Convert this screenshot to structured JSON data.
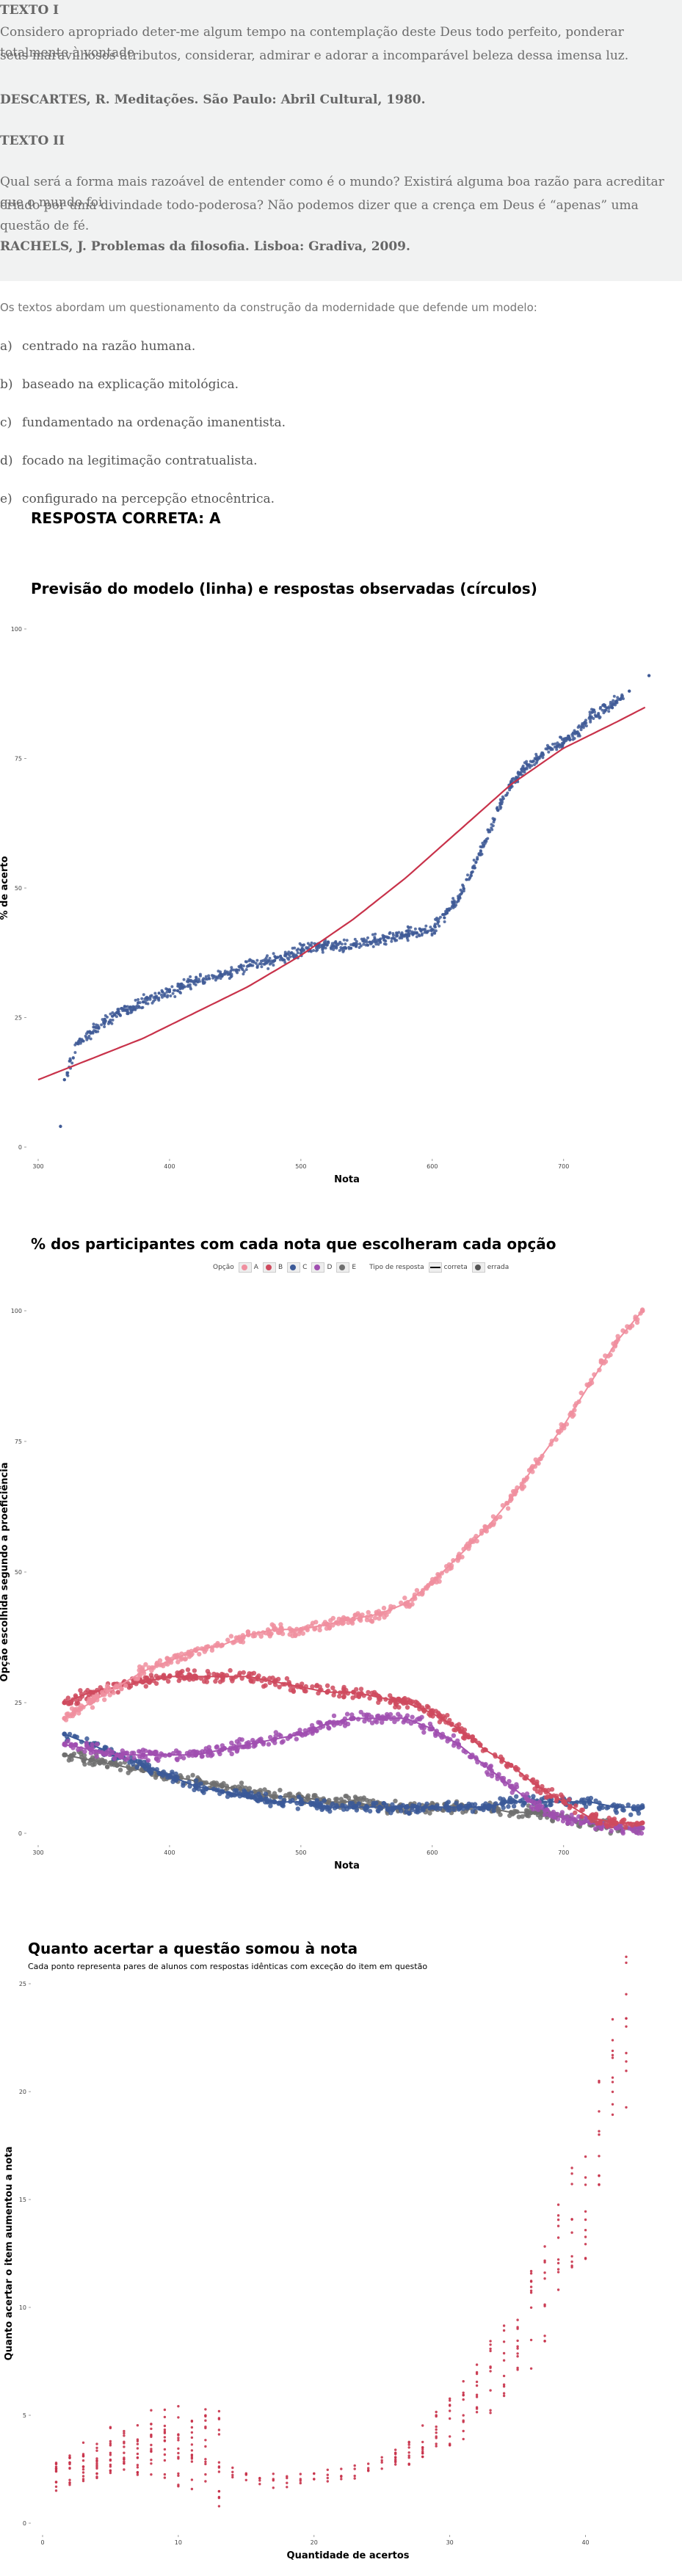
{
  "texts": {
    "t1_heading": "TEXTO I",
    "t1_line1": "Considero apropriado deter-me algum tempo na contemplação deste Deus todo perfeito, ponderar totalmente à vontade",
    "t1_line2": "seus maravilhosos atributos, considerar, admirar e adorar a incomparável beleza dessa imensa luz.",
    "t1_ref": "DESCARTES, R. Meditações. São Paulo: Abril Cultural, 1980.",
    "t2_heading": "TEXTO II",
    "t2_line1": "Qual será a forma mais razoável de entender como é o mundo? Existirá alguma boa razão para acreditar que o mundo foi",
    "t2_line2": "criado por uma divindade todo-poderosa? Não podemos dizer que a crença em Deus é “apenas” uma questão de fé.",
    "t2_ref": "RACHELS, J. Problemas da filosofia. Lisboa: Gradiva, 2009."
  },
  "question": {
    "intro": "Os textos abordam um questionamento da construção da modernidade que defende um modelo:",
    "options": [
      {
        "letter": "a)",
        "text": "centrado na razão humana."
      },
      {
        "letter": "b)",
        "text": "baseado na explicação mitológica."
      },
      {
        "letter": "c)",
        "text": "fundamentado na ordenação imanentista."
      },
      {
        "letter": "d)",
        "text": "focado na legitimação contratualista."
      },
      {
        "letter": "e)",
        "text": "configurado na percepção etnocêntrica."
      }
    ],
    "answer": "RESPOSTA CORRETA: A"
  },
  "colors": {
    "model_line": "#c8324a",
    "points_blue": "#3f5a96",
    "A": "#f08f9f",
    "B": "#cf4a5e",
    "C": "#3b5998",
    "D": "#a04fb0",
    "E": "#6f6f6f",
    "gain": "#c8324a"
  },
  "chart_data": [
    {
      "type": "scatter",
      "title": "Previsão do modelo (linha) e respostas observadas (círculos)",
      "xlabel": "Nota",
      "ylabel": "% de acerto",
      "x_ticks": [
        "300",
        "400",
        "500",
        "600",
        "700"
      ],
      "y_ticks": [
        "0",
        "25",
        "50",
        "75",
        "100"
      ],
      "xlim": [
        300,
        770
      ],
      "ylim": [
        0,
        100
      ],
      "grid": false,
      "series": [
        {
          "kind": "line",
          "x": [
            300,
            340,
            380,
            420,
            460,
            500,
            540,
            580,
            620,
            660,
            700,
            740,
            763
          ],
          "y": [
            13,
            17,
            21,
            26,
            31,
            37,
            44,
            52,
            61,
            70,
            77,
            82,
            85
          ]
        },
        {
          "kind": "points",
          "x": [
            317,
            320,
            330,
            340,
            350,
            360,
            370,
            380,
            400,
            420,
            440,
            460,
            480,
            500,
            520,
            540,
            560,
            580,
            600,
            610,
            620,
            630,
            640,
            650,
            660,
            670,
            680,
            690,
            700,
            710,
            720,
            740,
            750,
            765
          ],
          "y": [
            4,
            13,
            20,
            22,
            24,
            26,
            27,
            28,
            30,
            32,
            33,
            35,
            36,
            38,
            39,
            39,
            40,
            41,
            42,
            45,
            48,
            53,
            59,
            65,
            70,
            73,
            75,
            77,
            78,
            80,
            83,
            86,
            88,
            91
          ]
        }
      ]
    },
    {
      "type": "scatter",
      "title": "% dos participantes com cada nota que escolheram cada opção",
      "xlabel": "Nota",
      "ylabel": "Opção escolhida segundo a proeficiência",
      "x_ticks": [
        "300",
        "400",
        "500",
        "600",
        "700"
      ],
      "y_ticks": [
        "0",
        "25",
        "50",
        "75",
        "100"
      ],
      "xlim": [
        300,
        770
      ],
      "ylim": [
        0,
        100
      ],
      "legend": {
        "option_label": "Opção",
        "options": [
          "A",
          "B",
          "C",
          "D",
          "E"
        ],
        "type_label": "Tipo de resposta",
        "types": [
          "correta",
          "errada"
        ]
      },
      "series": [
        {
          "name": "A",
          "x": [
            320,
            340,
            360,
            380,
            400,
            420,
            440,
            460,
            480,
            500,
            520,
            540,
            560,
            580,
            600,
            620,
            640,
            660,
            680,
            700,
            720,
            740,
            760
          ],
          "y": [
            22,
            25,
            28,
            31,
            33,
            35,
            36,
            38,
            39,
            39,
            40,
            41,
            42,
            44,
            48,
            53,
            58,
            64,
            71,
            78,
            86,
            94,
            100
          ]
        },
        {
          "name": "B",
          "x": [
            320,
            340,
            360,
            380,
            400,
            420,
            440,
            460,
            480,
            500,
            520,
            540,
            560,
            580,
            600,
            620,
            640,
            660,
            680,
            700,
            720,
            740,
            760
          ],
          "y": [
            25,
            27,
            28,
            29,
            30,
            30,
            30,
            30,
            29,
            28,
            27,
            27,
            26,
            25,
            23,
            20,
            16,
            13,
            9,
            6,
            3,
            2,
            2
          ]
        },
        {
          "name": "C",
          "x": [
            320,
            340,
            360,
            380,
            400,
            420,
            440,
            460,
            480,
            500,
            520,
            540,
            560,
            580,
            600,
            620,
            640,
            660,
            680,
            700,
            720,
            740,
            760
          ],
          "y": [
            19,
            17,
            15,
            13,
            11,
            9,
            8,
            7,
            6,
            6,
            5,
            5,
            5,
            5,
            5,
            5,
            5,
            6,
            6,
            6,
            6,
            5,
            5
          ]
        },
        {
          "name": "D",
          "x": [
            320,
            340,
            360,
            380,
            400,
            420,
            440,
            460,
            480,
            500,
            520,
            540,
            560,
            580,
            600,
            620,
            640,
            660,
            680,
            700,
            720,
            740,
            760
          ],
          "y": [
            17,
            16,
            15,
            15,
            15,
            15,
            16,
            17,
            18,
            19,
            21,
            22,
            22,
            22,
            20,
            17,
            13,
            9,
            5,
            3,
            2,
            1,
            1
          ]
        },
        {
          "name": "E",
          "x": [
            320,
            340,
            360,
            380,
            400,
            420,
            440,
            460,
            480,
            500,
            520,
            540,
            560,
            580,
            600,
            620,
            640,
            660,
            680,
            700,
            720,
            740,
            760
          ],
          "y": [
            15,
            14,
            13,
            12,
            11,
            10,
            9,
            8,
            7,
            7,
            6,
            6,
            5,
            5,
            5,
            5,
            5,
            4,
            4,
            3,
            2,
            1,
            1
          ]
        }
      ]
    },
    {
      "type": "scatter",
      "title": "Quanto acertar a questão somou à nota",
      "subtitle": "Cada ponto representa pares de alunos com respostas idênticas com exceção do item em questão",
      "xlabel": "Quantidade de acertos",
      "ylabel": "Quanto acertar o item aumentou a nota",
      "x_ticks": [
        "0",
        "10",
        "20",
        "30",
        "40"
      ],
      "y_ticks": [
        "0",
        "5",
        "10",
        "15",
        "20",
        "25"
      ],
      "xlim": [
        0,
        45
      ],
      "ylim": [
        0,
        25
      ],
      "series": [
        {
          "name": "pares",
          "x": [
            1,
            2,
            3,
            4,
            5,
            6,
            7,
            8,
            9,
            10,
            11,
            12,
            13,
            14,
            15,
            16,
            17,
            18,
            19,
            20,
            21,
            22,
            23,
            24,
            25,
            26,
            27,
            28,
            29,
            30,
            31,
            32,
            33,
            34,
            35,
            36,
            37,
            38,
            39,
            40,
            41,
            42,
            43
          ],
          "y": [
            2,
            2.3,
            2.6,
            2.9,
            3.1,
            3.3,
            3.4,
            3.4,
            3.3,
            3.2,
            3.0,
            2.8,
            2.5,
            2.3,
            2.1,
            2.0,
            1.9,
            1.9,
            1.9,
            2.0,
            2.1,
            2.2,
            2.3,
            2.5,
            2.7,
            2.9,
            3.2,
            3.6,
            4.0,
            4.5,
            5.0,
            5.6,
            6.3,
            7.1,
            8.0,
            9.0,
            10.2,
            11.5,
            13.0,
            14.8,
            17.0,
            19.5,
            22.0
          ]
        }
      ]
    }
  ]
}
